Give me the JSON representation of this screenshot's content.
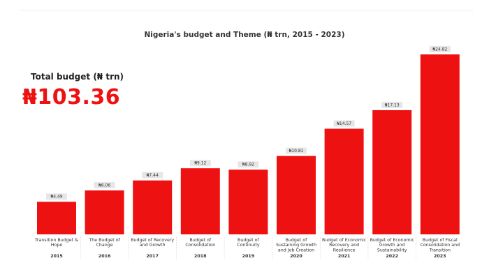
{
  "kpi": {
    "label": "Total budget (₦ trn)",
    "value": "₦103.36"
  },
  "colors": {
    "bar": "#ee1111",
    "accent": "#ee1111",
    "label_bg": "#e6e6e6"
  },
  "chart_data": {
    "type": "bar",
    "title": "Nigeria's budget and Theme (₦ trn, 2015 - 2023)",
    "categories": [
      "2015",
      "2016",
      "2017",
      "2018",
      "2019",
      "2020",
      "2021",
      "2022",
      "2023"
    ],
    "themes": [
      [
        "Transition Budget &",
        "Hope"
      ],
      [
        "The Budget of",
        "Change"
      ],
      [
        "Budget of Recovery",
        "and Growth"
      ],
      [
        "Budget of",
        "Consolidation"
      ],
      [
        "Budget of",
        "Continuity"
      ],
      [
        "Budget of",
        "Sustaining Growth",
        "and Job Creation"
      ],
      [
        "Budget of Economic",
        "Recovery and",
        "Resilience"
      ],
      [
        "Budget of Economic",
        "Growth and",
        "Sustainability"
      ],
      [
        "Budget of Fiscal",
        "Consolidation and",
        "Transition"
      ]
    ],
    "values": [
      4.49,
      6.06,
      7.44,
      9.12,
      8.92,
      10.81,
      14.57,
      17.13,
      24.82
    ],
    "data_labels": [
      "₦4.49",
      "₦6.06",
      "₦7.44",
      "₦9.12",
      "₦8.92",
      "₦10.81",
      "₦14.57",
      "₦17.13",
      "₦24.82"
    ],
    "xlabel": "",
    "ylabel": "",
    "ylim": [
      0,
      24.82
    ],
    "grid": false,
    "legend": "none"
  }
}
